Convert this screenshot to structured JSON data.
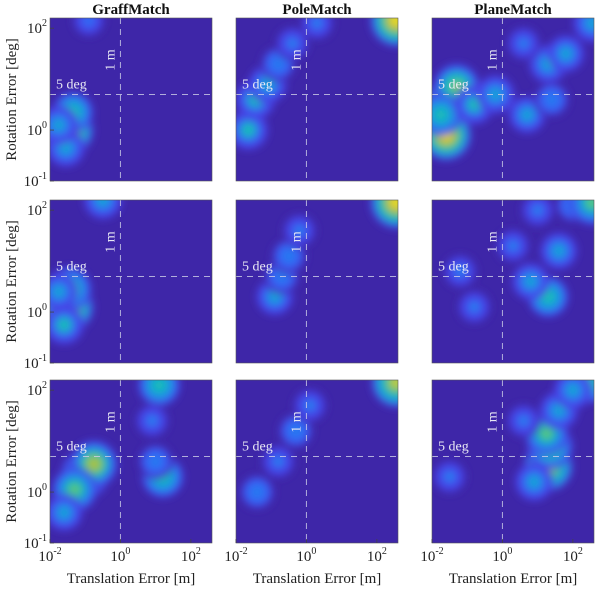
{
  "figure": {
    "x_label": "Translation Error [m]",
    "y_label": "Rotation Error [deg]",
    "column_titles": [
      "GraffMatch",
      "PoleMatch",
      "PlaneMatch"
    ],
    "x_ticks": [
      {
        "value": -2,
        "base": "10",
        "exp": "-2"
      },
      {
        "value": 0,
        "base": "10",
        "exp": "0"
      },
      {
        "value": 2,
        "base": "10",
        "exp": "2"
      }
    ],
    "y_ticks": [
      {
        "value": -1,
        "base": "10",
        "exp": "-1"
      },
      {
        "value": 0,
        "base": "10",
        "exp": "0"
      },
      {
        "value": 2,
        "base": "10",
        "exp": "2"
      }
    ],
    "ref_vertical_label": "1 m",
    "ref_horizontal_label": "5 deg",
    "colormap_colors": [
      "#3e26a8",
      "#4743e7",
      "#2f6cf5",
      "#1996e0",
      "#12b4c6",
      "#2bc49f",
      "#85c654",
      "#d2ba32",
      "#fcce2e",
      "#f9fb0e"
    ],
    "background_color": "#3e26a8",
    "ref_line_color": "#d0d0e8"
  },
  "chart_data": {
    "type": "heatmap",
    "x_axis": {
      "label": "Translation Error [m]",
      "scale": "log",
      "range_log10": [
        -2,
        2.6
      ]
    },
    "y_axis": {
      "label": "Rotation Error [deg]",
      "scale": "log",
      "range_log10": [
        -1,
        2.2
      ]
    },
    "reference_lines": {
      "translation_m": 1,
      "rotation_deg": 5
    },
    "note": "Blobs are density peaks: x, y in log10 units; w = relative weight",
    "panels": [
      {
        "row": 1,
        "column": "GraffMatch",
        "blobs": [
          {
            "x": -1.5,
            "y": 0.0,
            "w": 1.0
          },
          {
            "x": -1.35,
            "y": 0.35,
            "w": 0.55
          },
          {
            "x": -1.55,
            "y": -0.35,
            "w": 0.45
          },
          {
            "x": -1.75,
            "y": 0.1,
            "w": 0.45
          },
          {
            "x": -0.9,
            "y": 2.15,
            "w": 0.25
          }
        ]
      },
      {
        "row": 1,
        "column": "PoleMatch",
        "blobs": [
          {
            "x": -1.65,
            "y": 0.0,
            "w": 0.5
          },
          {
            "x": -1.45,
            "y": 0.6,
            "w": 0.5
          },
          {
            "x": -1.1,
            "y": 0.9,
            "w": 0.45
          },
          {
            "x": -0.8,
            "y": 1.3,
            "w": 0.35
          },
          {
            "x": -0.4,
            "y": 1.7,
            "w": 0.3
          },
          {
            "x": 0.3,
            "y": 2.1,
            "w": 0.3
          },
          {
            "x": 2.55,
            "y": 2.15,
            "w": 1.0
          }
        ]
      },
      {
        "row": 1,
        "column": "PlaneMatch",
        "blobs": [
          {
            "x": -1.5,
            "y": 0.5,
            "w": 0.95
          },
          {
            "x": -1.6,
            "y": -0.1,
            "w": 0.95
          },
          {
            "x": -1.3,
            "y": 0.85,
            "w": 0.75
          },
          {
            "x": -1.75,
            "y": 0.3,
            "w": 0.6
          },
          {
            "x": -0.8,
            "y": 0.5,
            "w": 0.5
          },
          {
            "x": -0.2,
            "y": 0.7,
            "w": 0.45
          },
          {
            "x": 0.7,
            "y": 0.3,
            "w": 0.4
          },
          {
            "x": 1.3,
            "y": 1.3,
            "w": 0.45
          },
          {
            "x": 1.8,
            "y": 1.5,
            "w": 0.4
          },
          {
            "x": 1.4,
            "y": 0.6,
            "w": 0.35
          },
          {
            "x": 0.6,
            "y": 1.7,
            "w": 0.3
          },
          {
            "x": 2.55,
            "y": 2.1,
            "w": 0.45
          }
        ]
      },
      {
        "row": 2,
        "column": "GraffMatch",
        "blobs": [
          {
            "x": -1.5,
            "y": 0.1,
            "w": 1.0
          },
          {
            "x": -1.45,
            "y": 0.45,
            "w": 0.7
          },
          {
            "x": -1.6,
            "y": -0.25,
            "w": 0.5
          },
          {
            "x": -1.75,
            "y": 0.4,
            "w": 0.4
          },
          {
            "x": -0.5,
            "y": 2.2,
            "w": 0.45
          }
        ]
      },
      {
        "row": 2,
        "column": "PoleMatch",
        "blobs": [
          {
            "x": -0.9,
            "y": 0.3,
            "w": 0.4
          },
          {
            "x": -0.7,
            "y": 0.7,
            "w": 0.35
          },
          {
            "x": -0.5,
            "y": 1.1,
            "w": 0.35
          },
          {
            "x": -0.2,
            "y": 1.6,
            "w": 0.3
          },
          {
            "x": 2.55,
            "y": 2.15,
            "w": 1.0
          }
        ]
      },
      {
        "row": 2,
        "column": "PlaneMatch",
        "blobs": [
          {
            "x": 1.3,
            "y": 0.3,
            "w": 0.55
          },
          {
            "x": 0.8,
            "y": 0.6,
            "w": 0.4
          },
          {
            "x": 1.6,
            "y": 1.2,
            "w": 0.4
          },
          {
            "x": 0.3,
            "y": 1.3,
            "w": 0.3
          },
          {
            "x": -0.8,
            "y": 0.1,
            "w": 0.3
          },
          {
            "x": -1.2,
            "y": 0.8,
            "w": 0.3
          },
          {
            "x": 1.0,
            "y": 2.0,
            "w": 0.3
          },
          {
            "x": 2.0,
            "y": 2.1,
            "w": 0.35
          },
          {
            "x": 2.55,
            "y": 2.15,
            "w": 0.7
          }
        ]
      },
      {
        "row": 3,
        "column": "GraffMatch",
        "blobs": [
          {
            "x": -1.0,
            "y": 0.35,
            "w": 0.85
          },
          {
            "x": -0.75,
            "y": 0.55,
            "w": 0.8
          },
          {
            "x": -1.3,
            "y": 0.05,
            "w": 0.7
          },
          {
            "x": -1.6,
            "y": -0.4,
            "w": 0.4
          },
          {
            "x": 1.2,
            "y": 0.3,
            "w": 0.6
          },
          {
            "x": 1.0,
            "y": 0.6,
            "w": 0.35
          },
          {
            "x": 1.1,
            "y": 2.1,
            "w": 0.6
          },
          {
            "x": 0.9,
            "y": 1.4,
            "w": 0.3
          }
        ]
      },
      {
        "row": 3,
        "column": "PoleMatch",
        "blobs": [
          {
            "x": -1.4,
            "y": 0.0,
            "w": 0.35
          },
          {
            "x": -0.8,
            "y": 0.6,
            "w": 0.3
          },
          {
            "x": -0.3,
            "y": 1.2,
            "w": 0.35
          },
          {
            "x": 0.1,
            "y": 1.7,
            "w": 0.3
          },
          {
            "x": 2.55,
            "y": 2.15,
            "w": 0.9
          }
        ]
      },
      {
        "row": 3,
        "column": "PlaneMatch",
        "blobs": [
          {
            "x": 1.3,
            "y": 0.5,
            "w": 0.9
          },
          {
            "x": 1.35,
            "y": 0.9,
            "w": 0.75
          },
          {
            "x": 1.25,
            "y": 1.15,
            "w": 0.65
          },
          {
            "x": 0.9,
            "y": 0.2,
            "w": 0.45
          },
          {
            "x": 1.6,
            "y": 1.6,
            "w": 0.45
          },
          {
            "x": 0.6,
            "y": 1.4,
            "w": 0.3
          },
          {
            "x": -1.5,
            "y": 0.3,
            "w": 0.3
          },
          {
            "x": 2.5,
            "y": 2.15,
            "w": 0.55
          },
          {
            "x": 2.0,
            "y": 2.0,
            "w": 0.45
          }
        ]
      }
    ]
  }
}
